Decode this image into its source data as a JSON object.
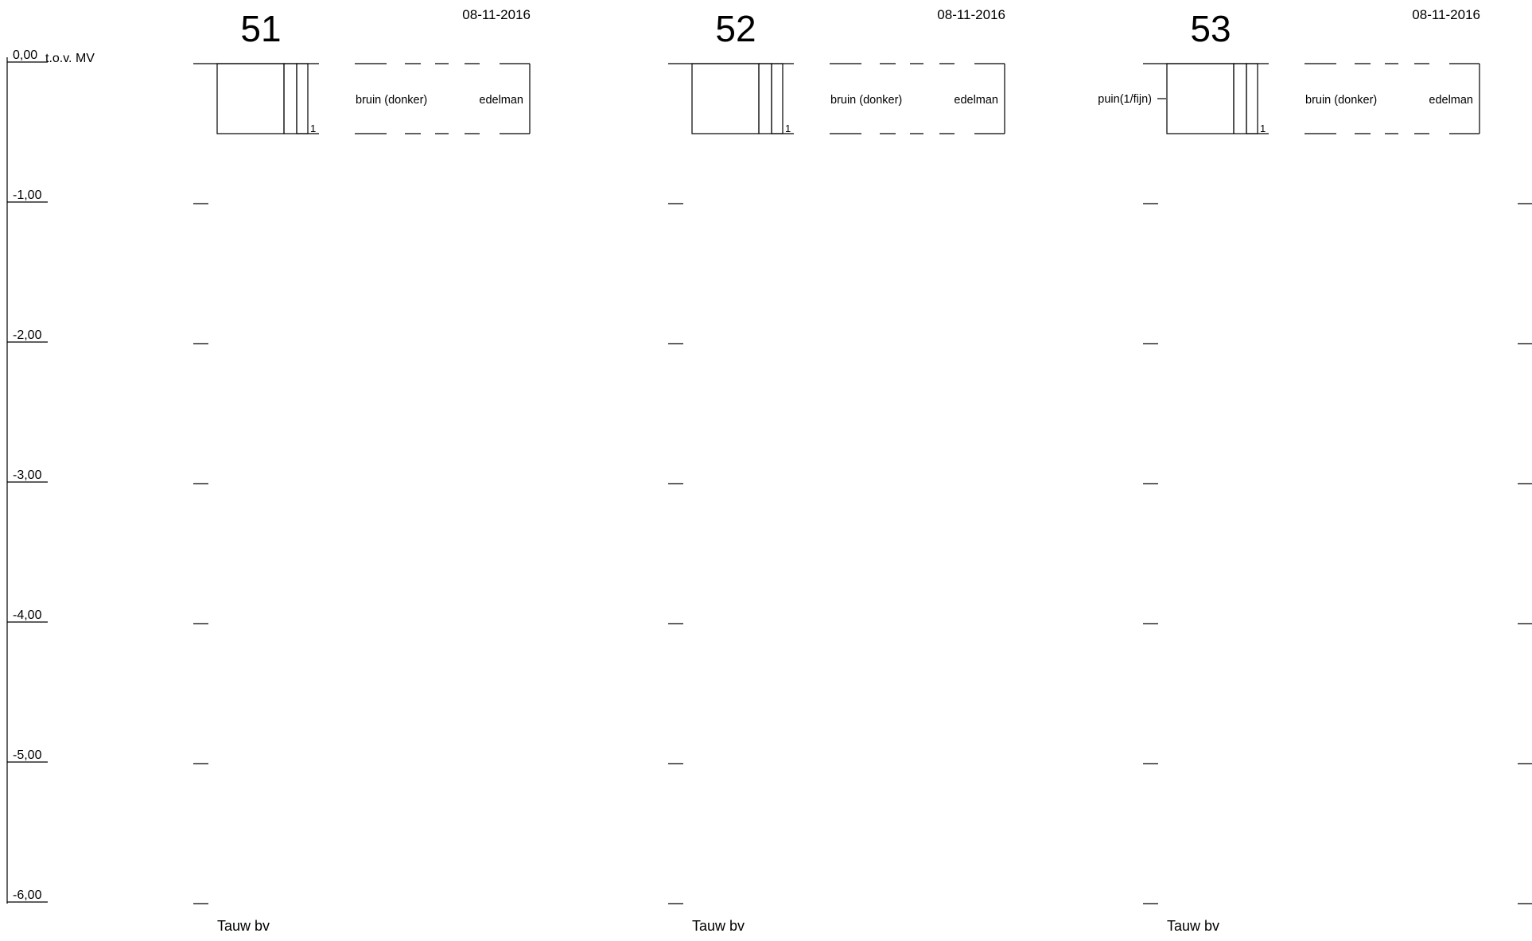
{
  "axis": {
    "reference_label": "t.o.v. MV",
    "depth_labels": [
      "0,00",
      "-1,00",
      "-2,00",
      "-3,00",
      "-4,00",
      "-5,00",
      "-6,00"
    ],
    "depth_values": [
      0,
      -1,
      -2,
      -3,
      -4,
      -5,
      -6
    ]
  },
  "boreholes": [
    {
      "number": "51",
      "date": "08-11-2016",
      "footer": "Tauw bv",
      "layer": {
        "top_depth": 0.0,
        "bottom_depth": -0.5,
        "left_annotation": "",
        "color": "bruin (donker)",
        "method": "edelman",
        "sample_id": "1"
      }
    },
    {
      "number": "52",
      "date": "08-11-2016",
      "footer": "Tauw bv",
      "layer": {
        "top_depth": 0.0,
        "bottom_depth": -0.5,
        "left_annotation": "",
        "color": "bruin (donker)",
        "method": "edelman",
        "sample_id": "1"
      }
    },
    {
      "number": "53",
      "date": "08-11-2016",
      "footer": "Tauw bv",
      "layer": {
        "top_depth": 0.0,
        "bottom_depth": -0.5,
        "left_annotation": "puin(1/fijn)",
        "color": "bruin (donker)",
        "method": "edelman",
        "sample_id": "1"
      }
    }
  ]
}
